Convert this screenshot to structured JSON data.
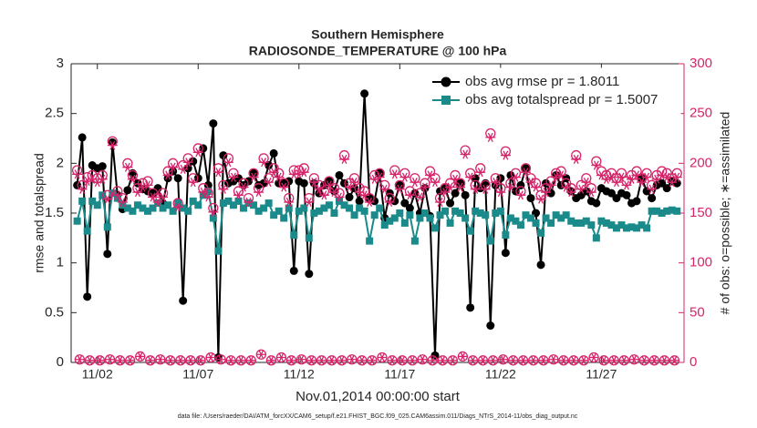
{
  "chart_data": {
    "type": "line",
    "title": "Southern Hemisphere",
    "subtitle": "RADIOSONDE_TEMPERATURE @ 100 hPa",
    "xlabel": "Nov.01,2014 00:00:00 start",
    "ylabel": "rmse and totalspread",
    "y2label": "# of obs: o=possible; ∗=assimilated",
    "footnote": "data file: /Users/raeder/DAI/ATM_forcXX/CAM6_setup/f.e21.FHIST_BGC.f09_025.CAM6assim.011/Diags_NTrS_2014-11/obs_diag_output.nc",
    "legend": "upper right",
    "xlim": [
      -0.3,
      30.1
    ],
    "xticks": [
      {
        "value": 1,
        "label": "11/02"
      },
      {
        "value": 6,
        "label": "11/07"
      },
      {
        "value": 11,
        "label": "11/12"
      },
      {
        "value": 16,
        "label": "11/17"
      },
      {
        "value": 21,
        "label": "11/22"
      },
      {
        "value": 26,
        "label": "11/27"
      }
    ],
    "ylim": [
      0,
      3
    ],
    "yticks": [
      0,
      0.5,
      1,
      1.5,
      2,
      2.5,
      3
    ],
    "y2lim": [
      0,
      300
    ],
    "y2ticks": [
      0,
      50,
      100,
      150,
      200,
      250,
      300
    ],
    "y2color": "#d6246a",
    "x": [
      0,
      0.25,
      0.5,
      0.75,
      1,
      1.25,
      1.5,
      1.75,
      2,
      2.25,
      2.5,
      2.75,
      3,
      3.25,
      3.5,
      3.75,
      4,
      4.25,
      4.5,
      4.75,
      5,
      5.25,
      5.5,
      5.75,
      6,
      6.25,
      6.5,
      6.75,
      7,
      7.25,
      7.5,
      7.75,
      8,
      8.25,
      8.5,
      8.75,
      9,
      9.25,
      9.5,
      9.75,
      10,
      10.25,
      10.5,
      10.75,
      11,
      11.25,
      11.5,
      11.75,
      12,
      12.25,
      12.5,
      12.75,
      13,
      13.25,
      13.5,
      13.75,
      14,
      14.25,
      14.5,
      14.75,
      15,
      15.25,
      15.5,
      15.75,
      16,
      16.25,
      16.5,
      16.75,
      17,
      17.25,
      17.5,
      17.75,
      18,
      18.25,
      18.5,
      18.75,
      19,
      19.25,
      19.5,
      19.75,
      20,
      20.25,
      20.5,
      20.75,
      21,
      21.25,
      21.5,
      21.75,
      22,
      22.25,
      22.5,
      22.75,
      23,
      23.25,
      23.5,
      23.75,
      24,
      24.25,
      24.5,
      24.75,
      25,
      25.25,
      25.5,
      25.75,
      26,
      26.25,
      26.5,
      26.75,
      27,
      27.25,
      27.5,
      27.75,
      28,
      28.25,
      28.5,
      28.75,
      29,
      29.25,
      29.5,
      29.75
    ],
    "series": [
      {
        "name": "obs avg rmse pr = 1.8011",
        "color": "#000000",
        "marker": "circle",
        "line": true,
        "values": [
          1.78,
          2.26,
          0.66,
          1.98,
          1.95,
          1.97,
          1.09,
          2.21,
          1.68,
          1.54,
          1.73,
          1.9,
          1.8,
          1.74,
          1.72,
          1.7,
          1.75,
          1.6,
          1.85,
          1.92,
          1.85,
          0.62,
          1.95,
          2.02,
          1.85,
          2.15,
          1.78,
          2.4,
          0.05,
          2.08,
          1.8,
          1.82,
          1.85,
          1.78,
          1.82,
          1.9,
          1.78,
          1.8,
          1.98,
          2.1,
          1.8,
          1.8,
          1.82,
          0.92,
          1.82,
          1.8,
          0.89,
          1.8,
          1.7,
          1.78,
          1.82,
          1.72,
          1.88,
          1.8,
          1.66,
          1.75,
          1.62,
          2.7,
          1.65,
          1.62,
          1.9,
          1.45,
          1.7,
          1.62,
          1.78,
          1.6,
          1.55,
          1.7,
          1.5,
          1.75,
          1.47,
          0.07,
          1.72,
          1.75,
          1.6,
          1.7,
          1.8,
          1.68,
          0.55,
          1.85,
          1.75,
          1.8,
          0.37,
          1.78,
          1.85,
          1.1,
          1.88,
          1.72,
          1.78,
          1.95,
          1.65,
          1.5,
          0.98,
          1.8,
          1.7,
          1.88,
          1.78,
          1.85,
          1.72,
          1.65,
          1.68,
          1.72,
          1.62,
          1.6,
          1.75,
          1.72,
          1.7,
          1.65,
          1.7,
          1.68,
          1.6,
          1.62,
          1.85,
          1.72,
          1.65,
          1.78,
          1.8,
          1.75,
          1.82,
          1.8
        ]
      },
      {
        "name": "obs avg totalspread pr = 1.5007",
        "color": "#1a8a8a",
        "marker": "square",
        "line": true,
        "values": [
          1.42,
          1.62,
          1.32,
          1.62,
          1.58,
          1.68,
          1.36,
          1.7,
          1.65,
          1.58,
          1.55,
          1.52,
          1.58,
          1.55,
          1.52,
          1.55,
          1.6,
          1.55,
          1.58,
          1.52,
          1.6,
          1.55,
          1.52,
          1.62,
          1.58,
          1.68,
          1.72,
          1.45,
          1.12,
          1.6,
          1.62,
          1.58,
          1.62,
          1.55,
          1.6,
          1.58,
          1.52,
          1.55,
          1.6,
          1.48,
          1.52,
          1.45,
          1.55,
          1.28,
          1.52,
          1.55,
          1.25,
          1.5,
          1.52,
          1.55,
          1.58,
          1.5,
          1.62,
          1.58,
          1.55,
          1.48,
          1.55,
          1.52,
          1.22,
          1.48,
          1.55,
          1.38,
          1.42,
          1.45,
          1.5,
          1.4,
          1.48,
          1.22,
          1.45,
          1.5,
          1.45,
          1.35,
          1.48,
          1.52,
          1.4,
          1.52,
          1.5,
          1.45,
          1.32,
          1.52,
          1.5,
          1.48,
          1.22,
          1.5,
          1.52,
          1.28,
          1.45,
          1.42,
          1.38,
          1.48,
          1.45,
          1.4,
          1.3,
          1.45,
          1.4,
          1.48,
          1.45,
          1.48,
          1.42,
          1.4,
          1.4,
          1.42,
          1.38,
          1.25,
          1.42,
          1.4,
          1.38,
          1.35,
          1.38,
          1.35,
          1.36,
          1.35,
          1.38,
          1.35,
          1.52,
          1.52,
          1.5,
          1.52,
          1.53,
          1.52
        ]
      },
      {
        "color": "#d6246a",
        "marker": "o",
        "axis": "y2",
        "values": [
          193,
          178,
          186,
          188,
          185,
          188,
          168,
          222,
          172,
          165,
          200,
          188,
          175,
          180,
          182,
          170,
          165,
          170,
          192,
          200,
          160,
          198,
          205,
          185,
          215,
          175,
          170,
          155,
          195,
          178,
          205,
          190,
          172,
          180,
          165,
          190,
          175,
          205,
          185,
          195,
          190,
          180,
          165,
          193,
          193,
          195,
          165,
          185,
          178,
          172,
          182,
          175,
          170,
          208,
          180,
          185,
          175,
          172,
          165,
          188,
          190,
          178,
          165,
          193,
          178,
          190,
          172,
          185,
          170,
          180,
          192,
          185,
          165,
          175,
          180,
          188,
          180,
          213,
          190,
          178,
          195,
          178,
          230,
          185,
          175,
          212,
          180,
          190,
          172,
          195,
          185,
          180,
          168,
          175,
          182,
          190,
          192,
          180,
          175,
          208,
          178,
          185,
          175,
          202,
          192,
          188,
          190,
          185,
          190,
          182,
          188,
          192,
          185,
          190,
          178,
          188,
          192,
          190,
          185,
          190
        ]
      },
      {
        "color": "#d6246a",
        "marker": "*",
        "axis": "y2",
        "values": [
          189,
          174,
          182,
          184,
          181,
          184,
          164,
          218,
          168,
          161,
          196,
          184,
          171,
          176,
          178,
          166,
          161,
          166,
          188,
          196,
          156,
          194,
          201,
          181,
          211,
          171,
          166,
          151,
          191,
          174,
          201,
          186,
          168,
          176,
          161,
          186,
          171,
          201,
          181,
          191,
          186,
          176,
          161,
          189,
          189,
          191,
          161,
          181,
          174,
          168,
          178,
          171,
          166,
          204,
          176,
          181,
          171,
          168,
          161,
          184,
          186,
          174,
          161,
          189,
          174,
          186,
          168,
          181,
          166,
          176,
          188,
          181,
          161,
          171,
          176,
          184,
          176,
          209,
          186,
          174,
          191,
          174,
          226,
          181,
          171,
          208,
          176,
          186,
          168,
          191,
          181,
          176,
          164,
          171,
          178,
          186,
          188,
          176,
          171,
          204,
          174,
          181,
          171,
          198,
          188,
          184,
          186,
          181,
          186,
          178,
          184,
          188,
          181,
          186,
          174,
          184,
          188,
          186,
          181,
          186
        ]
      },
      {
        "color": "#d6246a",
        "marker": "o",
        "axis": "y2",
        "x": [
          0.125,
          0.625,
          1.125,
          1.625,
          2.125,
          2.625,
          3.125,
          3.625,
          4.125,
          4.625,
          5.125,
          5.625,
          6.125,
          6.625,
          7.125,
          7.625,
          8.125,
          8.625,
          9.125,
          9.625,
          10.125,
          10.625,
          11.125,
          11.625,
          12.125,
          12.625,
          13.125,
          13.625,
          14.125,
          14.625,
          15.125,
          15.625,
          16.125,
          16.625,
          17.125,
          17.625,
          18.125,
          18.625,
          19.125,
          19.625,
          20.125,
          20.625,
          21.125,
          21.625,
          22.125,
          22.625,
          23.125,
          23.625,
          24.125,
          24.625,
          25.125,
          25.625,
          26.125,
          26.625,
          27.125,
          27.625,
          28.125,
          28.625,
          29.125,
          29.625
        ],
        "values": [
          3,
          2,
          2,
          3,
          2,
          2,
          6,
          2,
          3,
          2,
          2,
          2,
          2,
          5,
          3,
          2,
          2,
          2,
          8,
          2,
          5,
          2,
          3,
          2,
          2,
          2,
          2,
          3,
          2,
          2,
          5,
          2,
          2,
          2,
          3,
          2,
          2,
          2,
          6,
          2,
          2,
          2,
          3,
          2,
          2,
          2,
          2,
          3,
          2,
          2,
          2,
          5,
          2,
          2,
          2,
          3,
          2,
          2,
          2,
          2
        ]
      },
      {
        "color": "#d6246a",
        "marker": "*",
        "axis": "y2",
        "x": [
          0.125,
          0.625,
          1.125,
          1.625,
          2.125,
          2.625,
          3.125,
          3.625,
          4.125,
          4.625,
          5.125,
          5.625,
          6.125,
          6.625,
          7.125,
          7.625,
          8.125,
          8.625,
          9.125,
          9.625,
          10.125,
          10.625,
          11.125,
          11.625,
          12.125,
          12.625,
          13.125,
          13.625,
          14.125,
          14.625,
          15.125,
          15.625,
          16.125,
          16.625,
          17.125,
          17.625,
          18.125,
          18.625,
          19.125,
          19.625,
          20.125,
          20.625,
          21.125,
          21.625,
          22.125,
          22.625,
          23.125,
          23.625,
          24.125,
          24.625,
          25.125,
          25.625,
          26.125,
          26.625,
          27.125,
          27.625,
          28.125,
          28.625,
          29.125,
          29.625
        ],
        "values": [
          3,
          2,
          2,
          3,
          2,
          2,
          6,
          2,
          3,
          2,
          2,
          2,
          2,
          5,
          3,
          2,
          2,
          2,
          8,
          2,
          5,
          2,
          3,
          2,
          2,
          2,
          2,
          3,
          2,
          2,
          5,
          2,
          2,
          2,
          3,
          2,
          2,
          2,
          6,
          2,
          2,
          2,
          3,
          2,
          2,
          2,
          2,
          3,
          2,
          2,
          2,
          5,
          2,
          2,
          2,
          3,
          2,
          2,
          2,
          2
        ]
      }
    ]
  }
}
